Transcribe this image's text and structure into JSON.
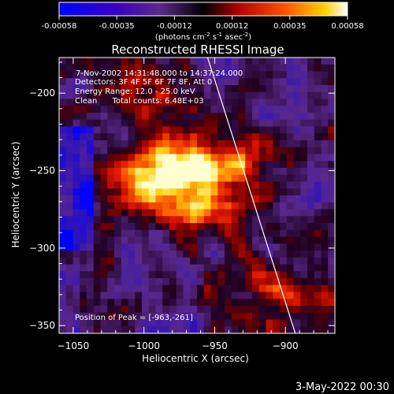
{
  "colorbar": {
    "ticks": [
      "-0.00058",
      "-0.00035",
      "-0.00012",
      "0.00012",
      "0.00035",
      "0.00058"
    ],
    "label": "(photons cm",
    "label_exp1": "-2",
    "label_mid": " s",
    "label_exp2": "-1",
    "label_end": " asec",
    "label_exp3": "-2",
    "label_close": ")",
    "colors": [
      "#0000ff",
      "#3a00a0",
      "#5b2a8a",
      "#000000",
      "#b00000",
      "#ff5000",
      "#ffd000",
      "#ffffff"
    ]
  },
  "chart_data": {
    "type": "heatmap",
    "title": "Reconstructed RHESSI Image",
    "xlabel": "Heliocentric X (arcsec)",
    "ylabel": "Heliocentric Y (arcsec)",
    "xlim": [
      -1060,
      -865
    ],
    "ylim": [
      -355,
      -177
    ],
    "x_ticks": [
      -1050,
      -1000,
      -950,
      -900
    ],
    "x_tick_labels": [
      "−1050",
      "−1000",
      "−950",
      "−900"
    ],
    "y_ticks": [
      -200,
      -250,
      -300,
      -350
    ],
    "y_tick_labels": [
      "−200",
      "−250",
      "−300",
      "−350"
    ],
    "info": [
      "7-Nov-2002 14:31:48.000 to 14:37:24.000",
      "Detectors: 3F 4F 5F 6F 7F 8F, Att 0",
      "Energy Range: 12.0 - 25.0 keV",
      "Clean      Total counts: 6.48E+03"
    ],
    "peak_label": "Position of Peak = [-963,-261]",
    "peak": [
      -963,
      -261
    ],
    "limb_line": [
      [
        -955,
        -177
      ],
      [
        -893,
        -355
      ]
    ],
    "hot_region": {
      "center": [
        -970,
        -255
      ],
      "value_range": [
        -0.00058,
        0.00058
      ]
    }
  },
  "footer": {
    "date": "3-May-2022 00:30"
  }
}
